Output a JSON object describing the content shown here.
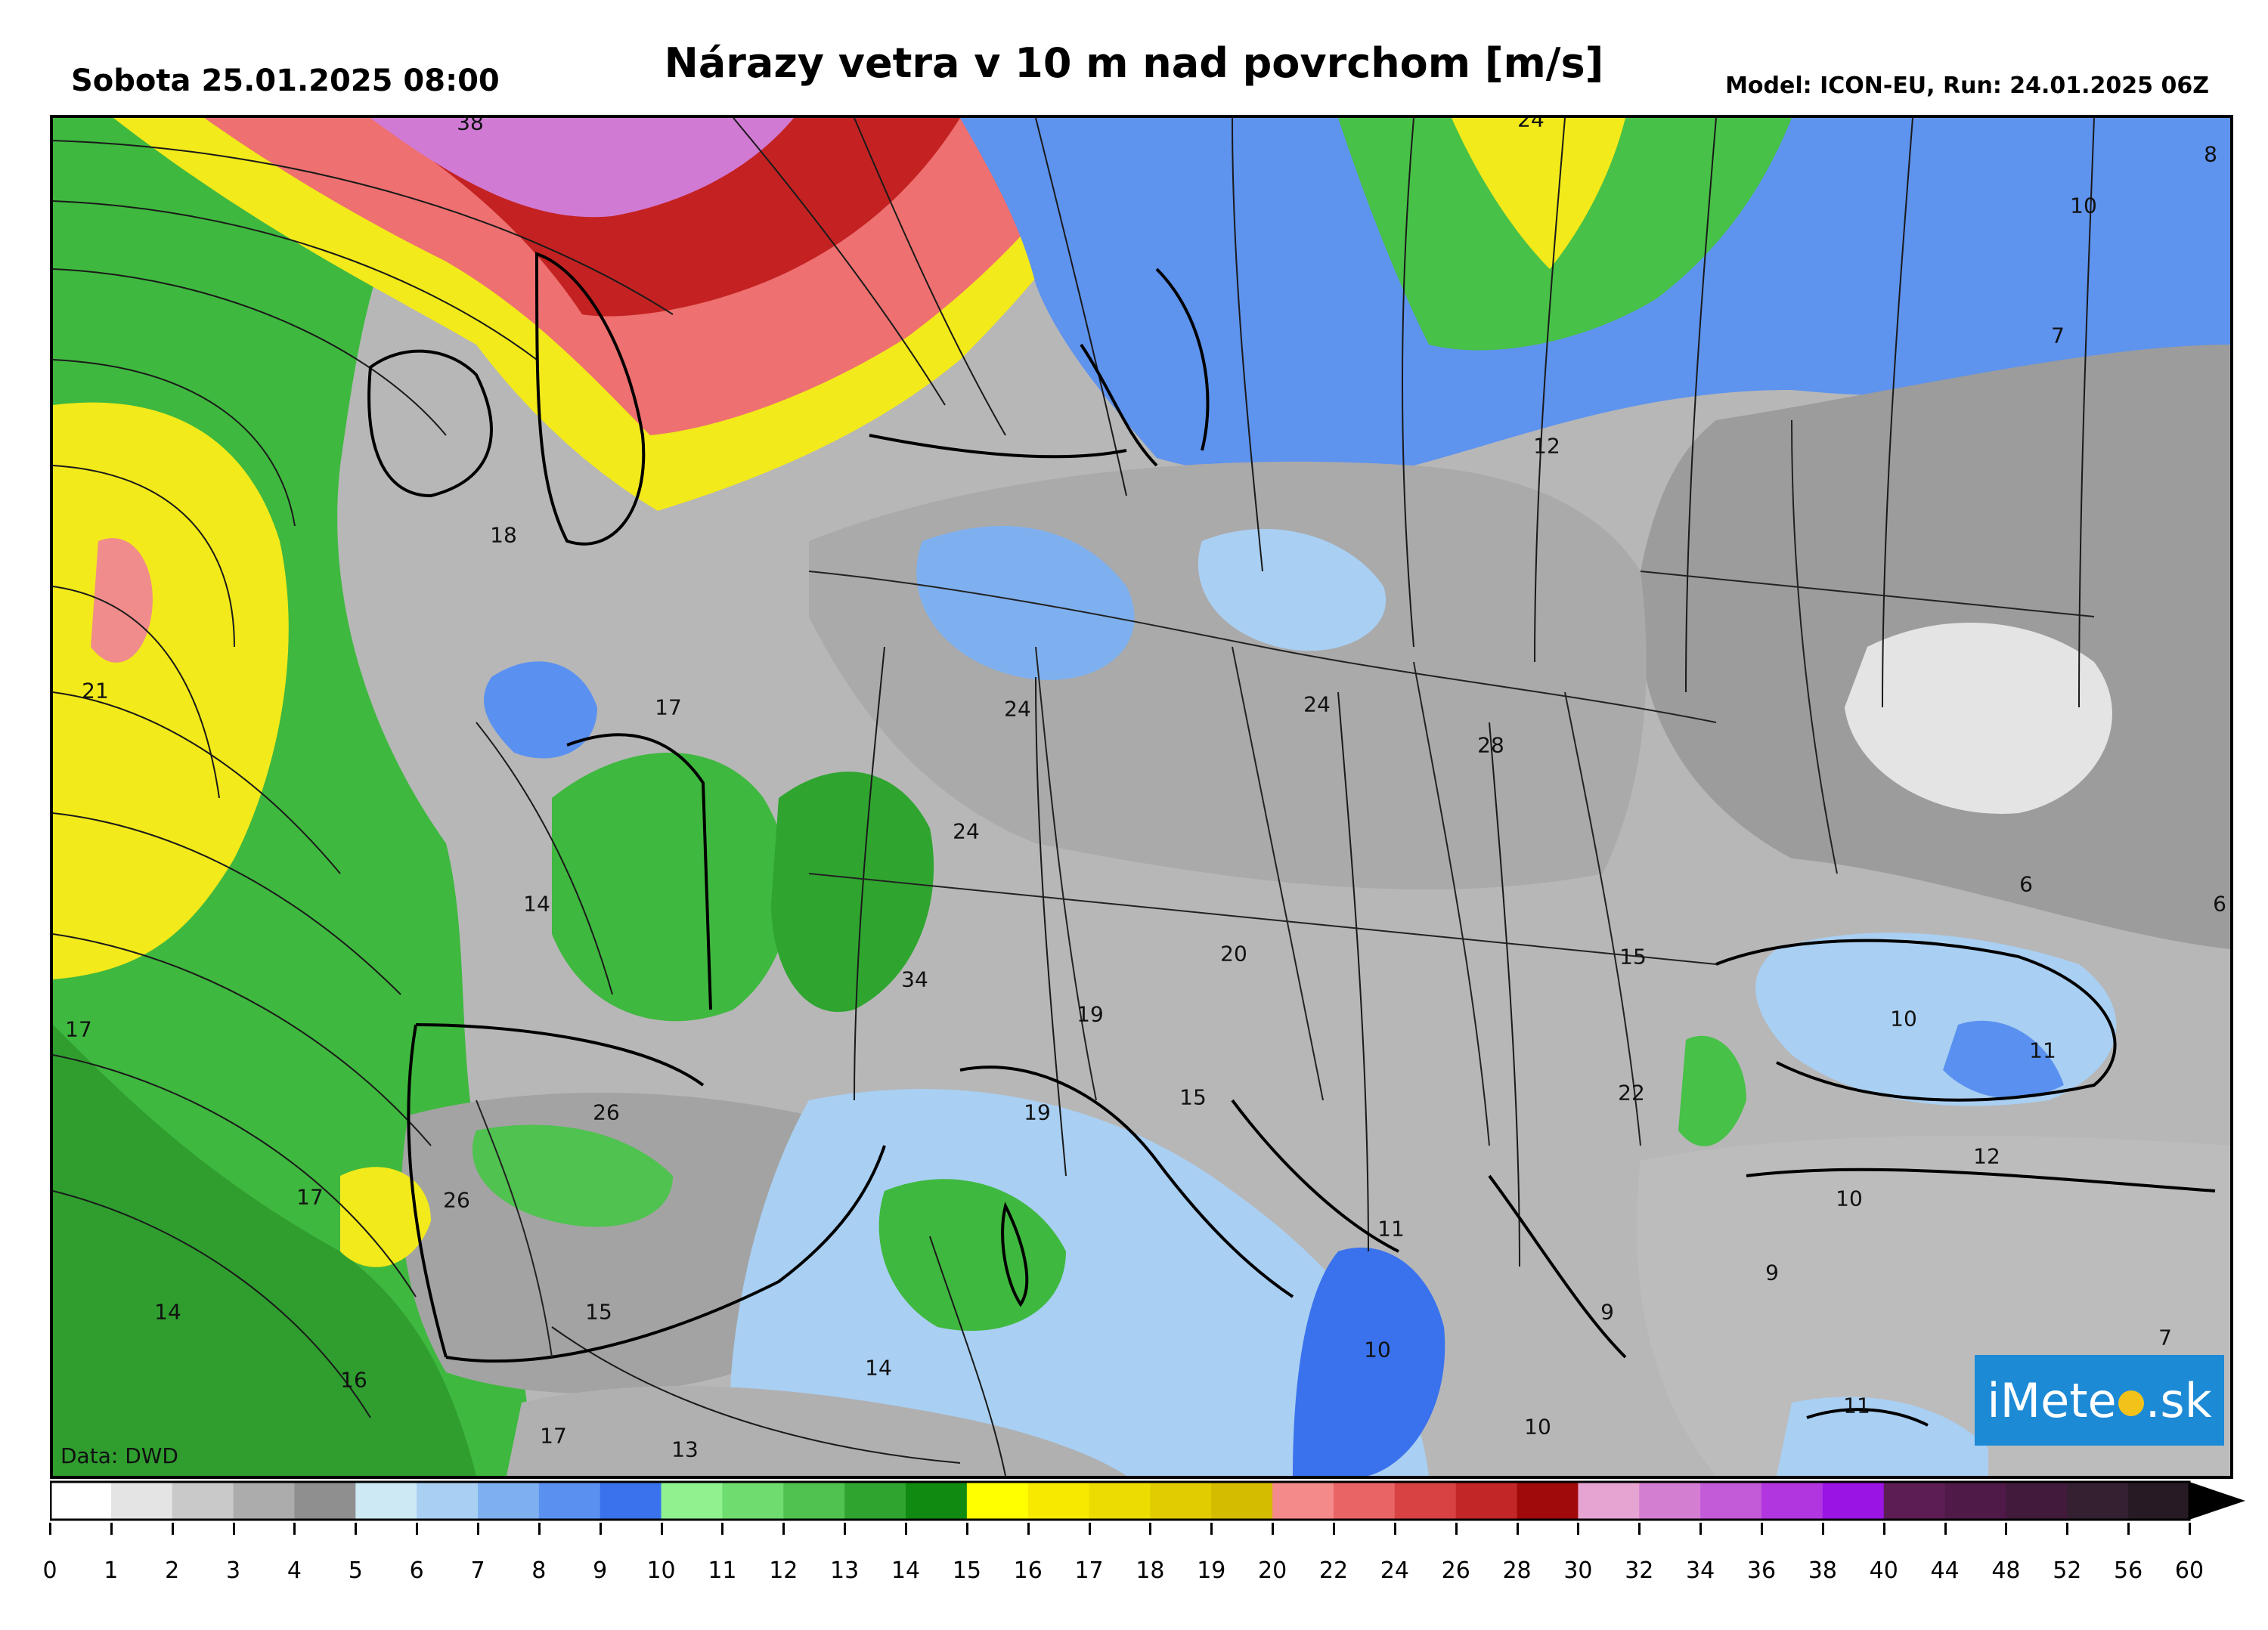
{
  "header": {
    "datetime": "Sobota 25.01.2025 08:00",
    "title": "Nárazy vetra v 10 m nad povrchom [m/s]",
    "model": "Model: ICON-EU, Run: 24.01.2025 06Z"
  },
  "map": {
    "data_credit": "Data: DWD",
    "logo": {
      "prefix": "iMete",
      "suffix": ".sk"
    },
    "value_labels": [
      "38",
      "24",
      "8",
      "10",
      "7",
      "12",
      "18",
      "21",
      "17",
      "24",
      "24",
      "28",
      "24",
      "14",
      "34",
      "15",
      "20",
      "19",
      "19",
      "15",
      "17",
      "26",
      "17",
      "26",
      "22",
      "6",
      "10",
      "11",
      "12",
      "10",
      "9",
      "11",
      "14",
      "15",
      "16",
      "14",
      "13",
      "17",
      "10",
      "9",
      "7",
      "11",
      "10",
      "6"
    ]
  },
  "colorbar": {
    "ticks": [
      "0",
      "1",
      "2",
      "3",
      "4",
      "5",
      "6",
      "7",
      "8",
      "9",
      "10",
      "11",
      "12",
      "13",
      "14",
      "15",
      "16",
      "17",
      "18",
      "19",
      "20",
      "22",
      "24",
      "26",
      "28",
      "30",
      "32",
      "34",
      "36",
      "38",
      "40",
      "44",
      "48",
      "52",
      "56",
      "60"
    ],
    "colors": [
      "#ffffff",
      "#e4e4e4",
      "#c9c9c9",
      "#acacac",
      "#8f8f8f",
      "#cde9f3",
      "#a9cff2",
      "#7eb0f0",
      "#5a91f0",
      "#3a72ee",
      "#8ff28f",
      "#6fdc6f",
      "#4fc24f",
      "#2fa52f",
      "#108a10",
      "#ffff00",
      "#f7ea00",
      "#ecdc00",
      "#e0cc00",
      "#d4bc00",
      "#f58a8a",
      "#e96464",
      "#d84242",
      "#c22626",
      "#a00a0a",
      "#e6a4d2",
      "#d47ed2",
      "#c35ad8",
      "#b236e0",
      "#9a14e4",
      "#5c1d55",
      "#4f1a48",
      "#421a3c",
      "#352032",
      "#271a24",
      "#000000"
    ]
  }
}
